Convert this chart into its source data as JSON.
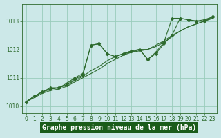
{
  "series": [
    {
      "x": [
        0,
        1,
        2,
        3,
        4,
        5,
        6,
        7,
        8,
        9,
        10,
        11,
        12,
        13,
        14,
        15,
        16,
        17,
        18,
        19,
        20,
        21,
        22,
        23
      ],
      "y": [
        1010.15,
        1010.35,
        1010.5,
        1010.6,
        1010.65,
        1010.75,
        1010.95,
        1011.1,
        1012.15,
        1012.2,
        1011.85,
        1011.75,
        1011.85,
        1011.95,
        1012.0,
        1011.65,
        1011.9,
        1012.25,
        1013.1,
        1013.1,
        1013.05,
        1013.0,
        1013.05,
        1013.15
      ],
      "has_marker": true
    },
    {
      "x": [
        0,
        1,
        2,
        3,
        4,
        5,
        6,
        7,
        8,
        9,
        10,
        11,
        12,
        13,
        14,
        15,
        16,
        17,
        18,
        19,
        20,
        21,
        22,
        23
      ],
      "y": [
        1010.15,
        1010.35,
        1010.5,
        1010.6,
        1010.65,
        1010.75,
        1010.9,
        1011.05,
        1011.25,
        1011.4,
        1011.6,
        1011.75,
        1011.85,
        1011.9,
        1012.0,
        1012.0,
        1012.1,
        1012.25,
        1012.45,
        1012.65,
        1012.8,
        1012.9,
        1013.0,
        1013.1
      ],
      "has_marker": false
    },
    {
      "x": [
        0,
        1,
        2,
        3,
        4,
        5,
        6,
        7,
        8,
        9,
        10,
        11,
        12,
        13,
        14,
        15,
        16,
        17,
        18,
        19,
        20,
        21,
        22,
        23
      ],
      "y": [
        1010.15,
        1010.35,
        1010.5,
        1010.65,
        1010.65,
        1010.8,
        1011.0,
        1011.15,
        1012.15,
        1012.2,
        1011.85,
        1011.75,
        1011.85,
        1011.95,
        1012.0,
        1011.65,
        1011.85,
        1012.2,
        1012.5,
        1013.1,
        1013.05,
        1013.0,
        1013.0,
        1013.15
      ],
      "has_marker": true
    },
    {
      "x": [
        0,
        1,
        2,
        3,
        4,
        5,
        6,
        7,
        8,
        9,
        10,
        11,
        12,
        13,
        14,
        15,
        16,
        17,
        18,
        19,
        20,
        21,
        22,
        23
      ],
      "y": [
        1010.15,
        1010.3,
        1010.45,
        1010.55,
        1010.6,
        1010.7,
        1010.85,
        1011.0,
        1011.15,
        1011.3,
        1011.5,
        1011.65,
        1011.8,
        1011.9,
        1011.95,
        1012.0,
        1012.15,
        1012.3,
        1012.5,
        1012.65,
        1012.8,
        1012.9,
        1013.0,
        1013.1
      ],
      "has_marker": false
    }
  ],
  "line_color": "#2d6a2d",
  "bg_color": "#cce8e8",
  "plot_bg_color": "#cce8e8",
  "grid_color": "#99ccbb",
  "xlabel": "Graphe pression niveau de la mer (hPa)",
  "xlabel_bg": "#1a5c1a",
  "xlabel_color": "#ffffff",
  "xlim": [
    -0.5,
    23.5
  ],
  "ylim": [
    1009.75,
    1013.6
  ],
  "yticks": [
    1010,
    1011,
    1012,
    1013
  ],
  "xticks": [
    0,
    1,
    2,
    3,
    4,
    5,
    6,
    7,
    8,
    9,
    10,
    11,
    12,
    13,
    14,
    15,
    16,
    17,
    18,
    19,
    20,
    21,
    22,
    23
  ],
  "tick_fontsize": 5.5,
  "xlabel_fontsize": 7.0,
  "marker": "D",
  "markersize": 2.5,
  "linewidth": 0.8
}
